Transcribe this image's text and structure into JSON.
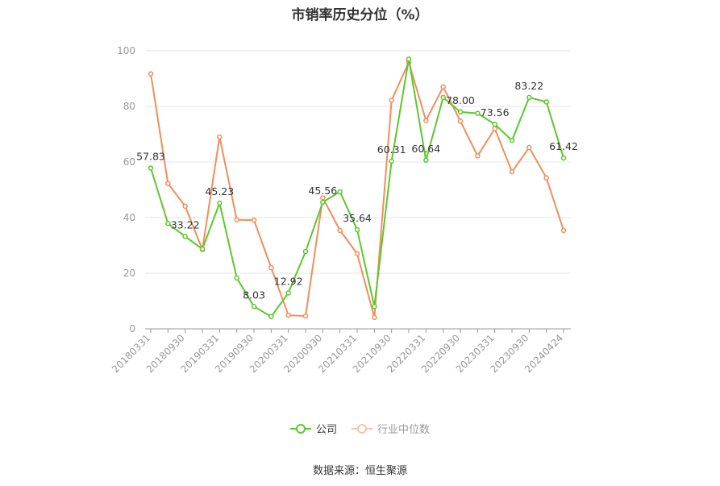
{
  "title": "市销率历史分位（%）",
  "source": "数据来源：恒生聚源",
  "chart_data": {
    "type": "line",
    "x": [
      "20180331",
      "20180630",
      "20180930",
      "20181231",
      "20190331",
      "20190630",
      "20190930",
      "20191231",
      "20200331",
      "20200630",
      "20200930",
      "20201231",
      "20210331",
      "20210630",
      "20210930",
      "20211231",
      "20220331",
      "20220630",
      "20220930",
      "20221231",
      "20230331",
      "20230630",
      "20230930",
      "20231231",
      "20240424"
    ],
    "x_tick_labels": [
      "20180331",
      "20180930",
      "20190331",
      "20190930",
      "20200331",
      "20200930",
      "20210331",
      "20210930",
      "20220331",
      "20220930",
      "20230331",
      "20230930",
      "20240424"
    ],
    "ylim": [
      0,
      100
    ],
    "y_ticks": [
      0,
      20,
      40,
      60,
      80,
      100
    ],
    "grid": true,
    "legend_position": "bottom",
    "series": [
      {
        "name": "公司",
        "color": "#5cc82e",
        "values": [
          57.83,
          37.9,
          33.22,
          28.7,
          45.23,
          18.3,
          8.03,
          4.4,
          12.92,
          27.8,
          45.56,
          49.3,
          35.64,
          8.0,
          60.31,
          97.0,
          60.64,
          83.2,
          78.0,
          77.5,
          73.56,
          67.8,
          83.22,
          81.6,
          61.42
        ],
        "labels": {
          "0": "57.83",
          "2": "33.22",
          "4": "45.23",
          "6": "8.03",
          "8": "12.92",
          "10": "45.56",
          "12": "35.64",
          "14": "60.31",
          "16": "60.64",
          "18": "78.00",
          "20": "73.56",
          "22": "83.22",
          "24": "61.42"
        }
      },
      {
        "name": "行业中位数",
        "color": "#f28e5b",
        "values": [
          91.7,
          52.3,
          44.1,
          28.5,
          69.0,
          39.2,
          39.1,
          22.0,
          4.9,
          4.6,
          47.1,
          35.4,
          27.0,
          4.1,
          82.2,
          95.9,
          74.9,
          87.0,
          74.7,
          62.2,
          72.0,
          56.5,
          65.2,
          54.3,
          35.4
        ],
        "labels": {}
      }
    ]
  }
}
